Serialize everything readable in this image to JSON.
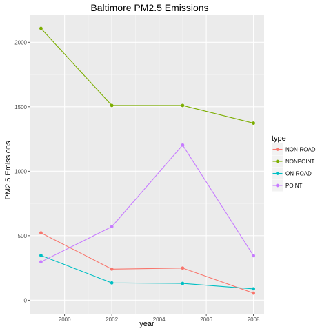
{
  "chart_data": {
    "type": "line",
    "title": "Baltimore PM2.5 Emissions",
    "xlabel": "year",
    "ylabel": "PM2.5 Emissions",
    "x": [
      1999,
      2002,
      2005,
      2008
    ],
    "xlim": [
      1998.55,
      2008.45
    ],
    "ylim": [
      -105,
      2210
    ],
    "xticks": [
      2000,
      2002,
      2004,
      2006,
      2008
    ],
    "yticks": [
      0,
      500,
      1000,
      1500,
      2000
    ],
    "grid": true,
    "legend": {
      "title": "type",
      "placement": "right"
    },
    "series": [
      {
        "name": "NON-ROAD",
        "color": "#F8766D",
        "values": [
          522,
          241,
          249,
          55
        ]
      },
      {
        "name": "NONPOINT",
        "color": "#7CAE00",
        "values": [
          2108,
          1510,
          1510,
          1373
        ]
      },
      {
        "name": "ON-ROAD",
        "color": "#00BFC4",
        "values": [
          347,
          134,
          130,
          88
        ]
      },
      {
        "name": "POINT",
        "color": "#C77CFF",
        "values": [
          297,
          570,
          1203,
          345
        ]
      }
    ]
  }
}
